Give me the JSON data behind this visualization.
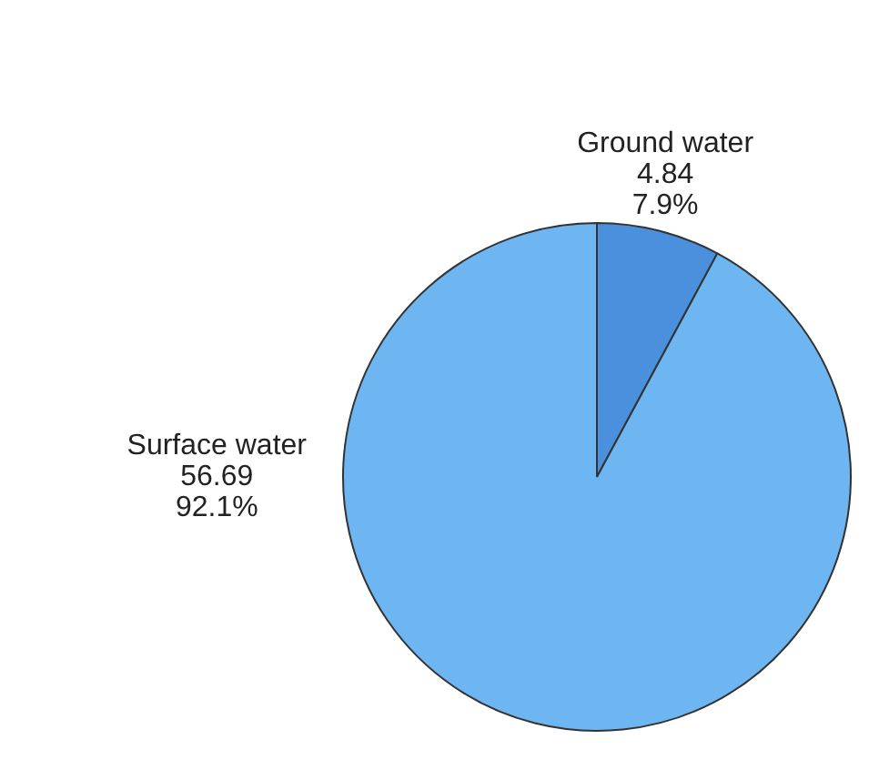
{
  "chart_data": {
    "type": "pie",
    "categories": [
      "Ground water",
      "Surface water"
    ],
    "values": [
      4.84,
      56.69
    ],
    "value_labels": [
      "4.84\n7.9%",
      "56.69\n92.1%"
    ],
    "colors": [
      "#4a90dc",
      "#6db6f2"
    ],
    "legend": false
  }
}
